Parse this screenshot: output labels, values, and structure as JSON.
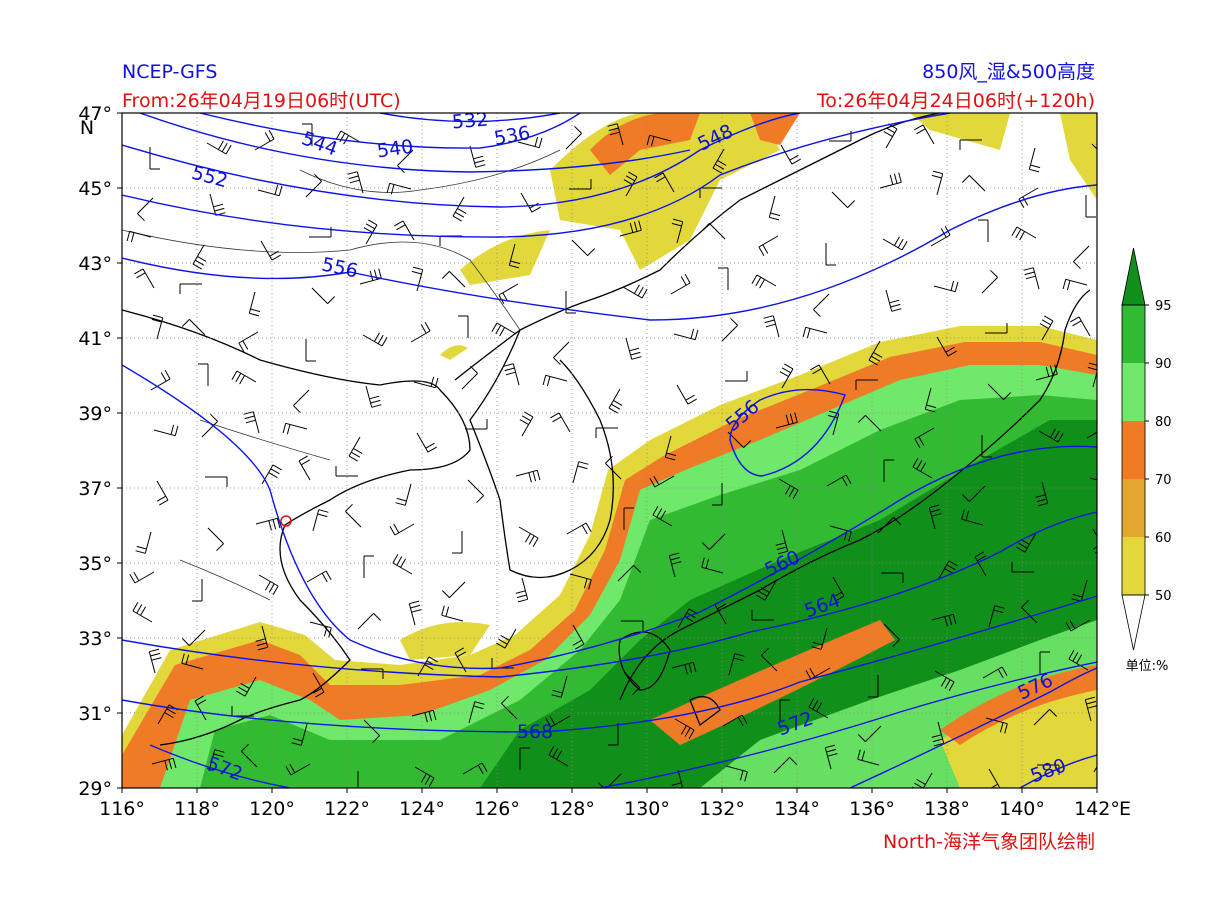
{
  "header": {
    "source": "NCEP-GFS",
    "title": "850风_湿&500高度",
    "from": "From:26年04月19日06时(UTC)",
    "to": "To:26年04月24日06时(+120h)"
  },
  "map": {
    "lonlim": [
      116,
      142
    ],
    "latlim": [
      29,
      47
    ],
    "lon_ticks": [
      {
        "value": 116,
        "label": "116°"
      },
      {
        "value": 118,
        "label": "118°"
      },
      {
        "value": 120,
        "label": "120°"
      },
      {
        "value": 122,
        "label": "122°"
      },
      {
        "value": 124,
        "label": "124°"
      },
      {
        "value": 126,
        "label": "126°"
      },
      {
        "value": 128,
        "label": "128°"
      },
      {
        "value": 130,
        "label": "130°"
      },
      {
        "value": 132,
        "label": "132°"
      },
      {
        "value": 134,
        "label": "134°"
      },
      {
        "value": 136,
        "label": "136°"
      },
      {
        "value": 138,
        "label": "138°"
      },
      {
        "value": 140,
        "label": "140°"
      },
      {
        "value": 142,
        "label": "142°"
      }
    ],
    "lat_ticks": [
      {
        "value": 29,
        "label": "29°"
      },
      {
        "value": 31,
        "label": "31°"
      },
      {
        "value": 33,
        "label": "33°"
      },
      {
        "value": 35,
        "label": "35°"
      },
      {
        "value": 37,
        "label": "37°"
      },
      {
        "value": 39,
        "label": "39°"
      },
      {
        "value": 41,
        "label": "41°"
      },
      {
        "value": 43,
        "label": "43°"
      },
      {
        "value": 45,
        "label": "45°"
      },
      {
        "value": 47,
        "label": "47°"
      }
    ],
    "lon_unit": "E",
    "lat_unit": "N",
    "grid": true
  },
  "contours": {
    "labels": [
      532,
      536,
      540,
      544,
      548,
      552,
      556,
      556,
      560,
      564,
      568,
      572,
      572,
      576,
      580
    ]
  },
  "colorbar": {
    "levels": [
      50,
      60,
      70,
      80,
      90,
      95
    ],
    "colors": [
      "#e2d83c",
      "#e3a630",
      "#ef7b27",
      "#70e86c",
      "#32bb32"
    ],
    "over_color": "#10901a",
    "under_color": "#ffffff",
    "unit": "单位:%"
  },
  "footer": {
    "credit": "North-海洋气象团队绘制"
  }
}
